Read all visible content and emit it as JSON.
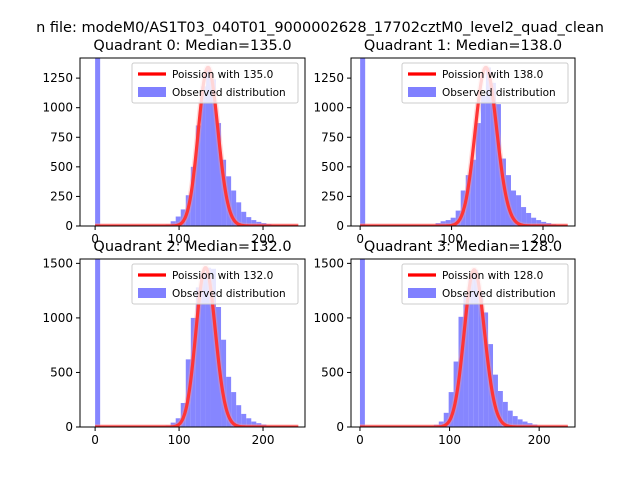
{
  "figure": {
    "suptitle": "n file: modeM0/AS1T03_040T01_9000002628_17702cztM0_level2_quad_clean"
  },
  "colors": {
    "hist": "#8080ff",
    "poisson": "#ff0000",
    "axes": "#000000",
    "background": "#ffffff"
  },
  "chart_data": [
    {
      "type": "bar",
      "title": "Quadrant 0: Median=135.0",
      "median": 135.0,
      "xlim": [
        -18,
        250
      ],
      "ylim": [
        0,
        1420
      ],
      "xticks": [
        0,
        100,
        200
      ],
      "yticks": [
        0,
        250,
        500,
        750,
        1000,
        1250
      ],
      "legend_position": "top-right",
      "series": [
        {
          "name": "Observed distribution",
          "kind": "histogram",
          "bin_width": 6,
          "bins": [
            [
              0,
              3000
            ],
            [
              66,
              5
            ],
            [
              72,
              8
            ],
            [
              78,
              10
            ],
            [
              84,
              14
            ],
            [
              90,
              40
            ],
            [
              96,
              80
            ],
            [
              102,
              140
            ],
            [
              108,
              260
            ],
            [
              114,
              500
            ],
            [
              120,
              850
            ],
            [
              126,
              1180
            ],
            [
              132,
              1340
            ],
            [
              138,
              1240
            ],
            [
              144,
              870
            ],
            [
              150,
              560
            ],
            [
              156,
              420
            ],
            [
              162,
              300
            ],
            [
              168,
              200
            ],
            [
              174,
              120
            ],
            [
              180,
              75
            ],
            [
              186,
              50
            ],
            [
              192,
              35
            ],
            [
              198,
              25
            ],
            [
              204,
              16
            ],
            [
              210,
              10
            ],
            [
              216,
              6
            ],
            [
              222,
              4
            ],
            [
              228,
              2
            ]
          ]
        },
        {
          "name": "Poission with 135.0",
          "kind": "poisson",
          "mean": 135.0,
          "peak": 1340
        }
      ]
    },
    {
      "type": "bar",
      "title": "Quadrant 1: Median=138.0",
      "median": 138.0,
      "xlim": [
        -10,
        235
      ],
      "ylim": [
        0,
        1420
      ],
      "xticks": [
        0,
        100,
        200
      ],
      "yticks": [
        0,
        250,
        500,
        750,
        1000,
        1250
      ],
      "legend_position": "top-right",
      "series": [
        {
          "name": "Observed distribution",
          "kind": "histogram",
          "bin_width": 5.5,
          "bins": [
            [
              0,
              3000
            ],
            [
              66,
              6
            ],
            [
              71.5,
              8
            ],
            [
              77,
              12
            ],
            [
              82.5,
              25
            ],
            [
              88,
              40
            ],
            [
              93.5,
              50
            ],
            [
              99,
              70
            ],
            [
              104.5,
              130
            ],
            [
              110,
              300
            ],
            [
              115.5,
              430
            ],
            [
              121,
              560
            ],
            [
              126.5,
              870
            ],
            [
              132,
              1100
            ],
            [
              137.5,
              1340
            ],
            [
              143,
              1210
            ],
            [
              148.5,
              1030
            ],
            [
              154,
              570
            ],
            [
              159.5,
              430
            ],
            [
              165,
              300
            ],
            [
              170.5,
              260
            ],
            [
              176,
              160
            ],
            [
              181.5,
              110
            ],
            [
              187,
              70
            ],
            [
              192.5,
              50
            ],
            [
              198,
              35
            ],
            [
              203.5,
              25
            ],
            [
              209,
              15
            ],
            [
              214.5,
              8
            ]
          ]
        },
        {
          "name": "Poission with 138.0",
          "kind": "poisson",
          "mean": 138.0,
          "peak": 1340
        }
      ]
    },
    {
      "type": "bar",
      "title": "Quadrant 2: Median=132.0",
      "median": 132.0,
      "xlim": [
        -18,
        250
      ],
      "ylim": [
        0,
        1540
      ],
      "xticks": [
        0,
        100,
        200
      ],
      "yticks": [
        0,
        500,
        1000,
        1500
      ],
      "legend_position": "top-right",
      "series": [
        {
          "name": "Observed distribution",
          "kind": "histogram",
          "bin_width": 6,
          "bins": [
            [
              0,
              3000
            ],
            [
              72,
              5
            ],
            [
              78,
              8
            ],
            [
              84,
              15
            ],
            [
              90,
              40
            ],
            [
              96,
              80
            ],
            [
              102,
              220
            ],
            [
              108,
              620
            ],
            [
              114,
              1000
            ],
            [
              120,
              1280
            ],
            [
              126,
              1420
            ],
            [
              132,
              1460
            ],
            [
              138,
              1450
            ],
            [
              144,
              1100
            ],
            [
              150,
              800
            ],
            [
              156,
              460
            ],
            [
              162,
              320
            ],
            [
              168,
              200
            ],
            [
              174,
              120
            ],
            [
              180,
              80
            ],
            [
              186,
              50
            ],
            [
              192,
              35
            ],
            [
              198,
              22
            ],
            [
              204,
              14
            ],
            [
              210,
              8
            ],
            [
              216,
              5
            ]
          ]
        },
        {
          "name": "Poission with 132.0",
          "kind": "poisson",
          "mean": 132.0,
          "peak": 1460
        }
      ]
    },
    {
      "type": "bar",
      "title": "Quadrant 3: Median=128.0",
      "median": 128.0,
      "xlim": [
        -10,
        240
      ],
      "ylim": [
        0,
        1540
      ],
      "xticks": [
        0,
        100,
        200
      ],
      "yticks": [
        0,
        500,
        1000,
        1500
      ],
      "legend_position": "top-right",
      "series": [
        {
          "name": "Observed distribution",
          "kind": "histogram",
          "bin_width": 5.5,
          "bins": [
            [
              0,
              3000
            ],
            [
              71.5,
              5
            ],
            [
              77,
              8
            ],
            [
              82.5,
              20
            ],
            [
              88,
              50
            ],
            [
              93.5,
              130
            ],
            [
              99,
              320
            ],
            [
              104.5,
              600
            ],
            [
              110,
              1010
            ],
            [
              115.5,
              1210
            ],
            [
              121,
              1360
            ],
            [
              126.5,
              1440
            ],
            [
              132,
              1230
            ],
            [
              137.5,
              1050
            ],
            [
              143,
              760
            ],
            [
              148.5,
              480
            ],
            [
              154,
              330
            ],
            [
              159.5,
              230
            ],
            [
              165,
              150
            ],
            [
              170.5,
              100
            ],
            [
              176,
              70
            ],
            [
              181.5,
              50
            ],
            [
              187,
              35
            ],
            [
              192.5,
              22
            ],
            [
              198,
              14
            ],
            [
              203.5,
              9
            ],
            [
              209,
              6
            ],
            [
              214.5,
              3
            ]
          ]
        },
        {
          "name": "Poission with 128.0",
          "kind": "poisson",
          "mean": 128.0,
          "peak": 1440
        }
      ]
    }
  ]
}
